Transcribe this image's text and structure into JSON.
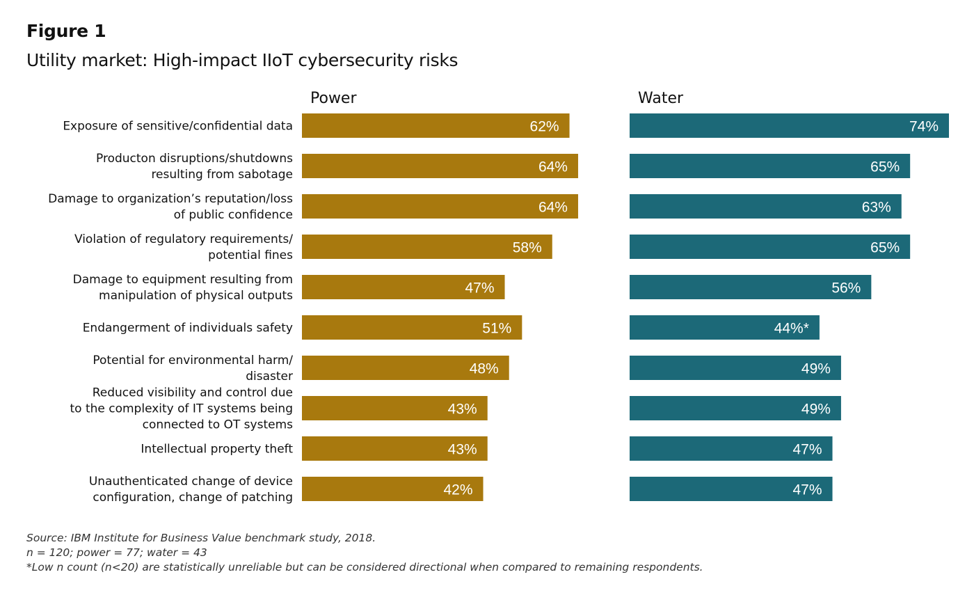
{
  "figure_label": "Figure 1",
  "title": "Utility market: High-impact IIoT cybersecurity risks",
  "colors": {
    "power": "#A8790E",
    "water": "#1C6978"
  },
  "chart_data": {
    "type": "bar",
    "orientation": "horizontal",
    "categories": [
      [
        "Exposure of sensitive/confidential data"
      ],
      [
        "Producton disruptions/shutdowns",
        "resulting from sabotage"
      ],
      [
        "Damage to organization’s reputation/loss",
        "of public confidence"
      ],
      [
        "Violation of regulatory requirements/",
        "potential fines"
      ],
      [
        "Damage to equipment resulting from",
        "manipulation of physical outputs"
      ],
      [
        "Endangerment of individuals safety"
      ],
      [
        "Potential for environmental harm/",
        "disaster"
      ],
      [
        "Reduced visibility and control due",
        "to the complexity of IT systems being",
        "connected to OT systems"
      ],
      [
        "Intellectual property theft"
      ],
      [
        "Unauthenticated change of device",
        "configuration, change of patching"
      ]
    ],
    "series": [
      {
        "name": "Power",
        "values": [
          62,
          64,
          64,
          58,
          47,
          51,
          48,
          43,
          43,
          42
        ],
        "labels": [
          "62%",
          "64%",
          "64%",
          "58%",
          "47%",
          "51%",
          "48%",
          "43%",
          "43%",
          "42%"
        ]
      },
      {
        "name": "Water",
        "values": [
          74,
          65,
          63,
          65,
          56,
          44,
          49,
          49,
          47,
          47
        ],
        "labels": [
          "74%",
          "65%",
          "63%",
          "65%",
          "56%",
          "44%*",
          "49%",
          "49%",
          "47%",
          "47%"
        ]
      }
    ],
    "xlim": [
      0,
      74
    ],
    "grid": false
  },
  "notes": [
    "Source: IBM Institute for Business Value benchmark study, 2018.",
    "n = 120; power = 77; water = 43",
    "*Low n count (n<20) are statistically unreliable but can be considered directional when compared to remaining respondents."
  ]
}
